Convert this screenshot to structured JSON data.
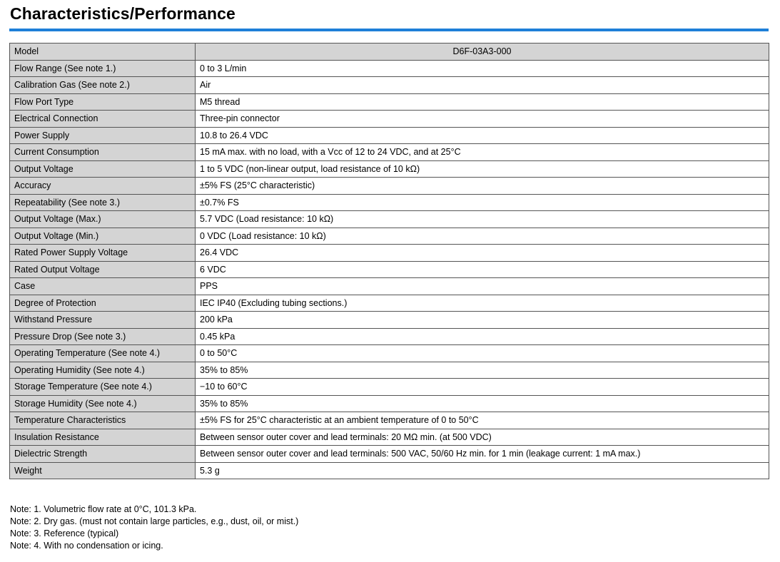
{
  "title": "Characteristics/Performance",
  "header": {
    "label": "Model",
    "value": "D6F-03A3-000"
  },
  "rows": [
    {
      "label": "Flow Range (See note 1.)",
      "value": "0 to 3 L/min"
    },
    {
      "label": "Calibration Gas (See note 2.)",
      "value": "Air"
    },
    {
      "label": "Flow Port Type",
      "value": "M5 thread"
    },
    {
      "label": "Electrical Connection",
      "value": "Three-pin connector"
    },
    {
      "label": "Power Supply",
      "value": "10.8 to 26.4 VDC"
    },
    {
      "label": "Current Consumption",
      "value": "15 mA max. with no load, with a Vcc of 12 to 24 VDC, and at 25°C"
    },
    {
      "label": "Output Voltage",
      "value": "1 to 5 VDC (non-linear output, load resistance of 10 kΩ)"
    },
    {
      "label": "Accuracy",
      "value": "±5% FS (25°C characteristic)"
    },
    {
      "label": "Repeatability (See note 3.)",
      "value": "±0.7% FS"
    },
    {
      "label": "Output Voltage (Max.)",
      "value": "5.7 VDC (Load resistance: 10 kΩ)"
    },
    {
      "label": "Output Voltage (Min.)",
      "value": "0 VDC (Load resistance: 10 kΩ)"
    },
    {
      "label": "Rated Power Supply Voltage",
      "value": "26.4 VDC"
    },
    {
      "label": "Rated Output Voltage",
      "value": "6 VDC"
    },
    {
      "label": "Case",
      "value": "PPS"
    },
    {
      "label": "Degree of Protection",
      "value": "IEC IP40 (Excluding tubing sections.)"
    },
    {
      "label": "Withstand Pressure",
      "value": "200 kPa"
    },
    {
      "label": "Pressure Drop (See note 3.)",
      "value": "0.45 kPa"
    },
    {
      "label": "Operating Temperature (See note 4.)",
      "value": "0 to 50°C"
    },
    {
      "label": "Operating Humidity (See note 4.)",
      "value": "35% to 85%"
    },
    {
      "label": "Storage Temperature (See note 4.)",
      "value": "−10 to 60°C"
    },
    {
      "label": "Storage Humidity (See note 4.)",
      "value": "35% to 85%"
    },
    {
      "label": "Temperature Characteristics",
      "value": "±5% FS for 25°C characteristic at an ambient temperature of 0 to 50°C"
    },
    {
      "label": "Insulation Resistance",
      "value": "Between sensor outer cover and lead terminals: 20 MΩ min. (at 500 VDC)"
    },
    {
      "label": "Dielectric Strength",
      "value": "Between sensor outer cover and lead terminals: 500 VAC, 50/60 Hz min. for 1 min (leakage current: 1 mA max.)"
    },
    {
      "label": "Weight",
      "value": "5.3 g"
    }
  ],
  "notes": [
    "Note: 1.  Volumetric flow rate at 0°C, 101.3 kPa.",
    "Note: 2.  Dry gas. (must not contain large particles, e.g., dust, oil, or mist.)",
    "Note: 3.  Reference (typical)",
    "Note: 4.  With no condensation or icing."
  ]
}
